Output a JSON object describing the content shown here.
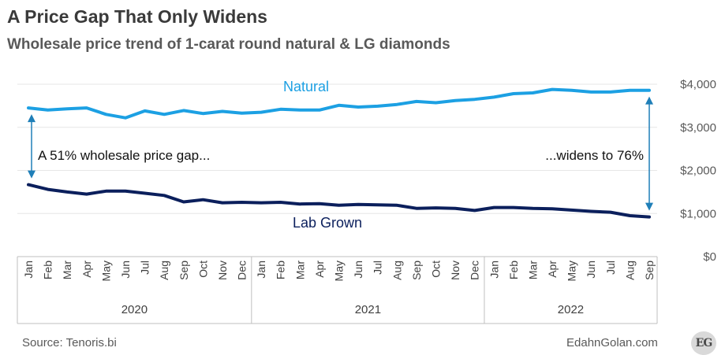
{
  "header": {
    "title": "A Price Gap That Only Widens",
    "subtitle": "Wholesale price trend of 1-carat round natural & LG diamonds"
  },
  "footer": {
    "source": "Source: Tenoris.bi",
    "site": "EdahnGolan.com",
    "logo": "EG"
  },
  "colors": {
    "natural": "#1ca0e3",
    "lab_grown": "#0b1f5c",
    "arrow": "#1f7fb8",
    "grid": "#e6e6e6",
    "axis": "#bfbfbf"
  },
  "chart_data": {
    "type": "line",
    "ylim": [
      0,
      4000
    ],
    "y_ticks": [
      0,
      1000,
      2000,
      3000,
      4000
    ],
    "y_tick_labels": [
      "$0",
      "$1,000",
      "$2,000",
      "$3,000",
      "$4,000"
    ],
    "grid": true,
    "categories": [
      "Jan",
      "Feb",
      "Mar",
      "Apr",
      "May",
      "Jun",
      "Jul",
      "Aug",
      "Sep",
      "Oct",
      "Nov",
      "Dec",
      "Jan",
      "Feb",
      "Mar",
      "Apr",
      "May",
      "Jun",
      "Jul",
      "Aug",
      "Sep",
      "Oct",
      "Nov",
      "Dec",
      "Jan",
      "Feb",
      "Mar",
      "Apr",
      "May",
      "Jun",
      "Jul",
      "Aug",
      "Sep"
    ],
    "year_groups": [
      {
        "label": "2020",
        "count": 12
      },
      {
        "label": "2021",
        "count": 12
      },
      {
        "label": "2022",
        "count": 9
      }
    ],
    "series": [
      {
        "name": "Natural",
        "color": "#1ca0e3",
        "values": [
          3450,
          3400,
          3430,
          3450,
          3300,
          3220,
          3380,
          3300,
          3390,
          3320,
          3370,
          3330,
          3350,
          3420,
          3400,
          3400,
          3510,
          3470,
          3490,
          3530,
          3600,
          3570,
          3620,
          3650,
          3700,
          3780,
          3800,
          3880,
          3860,
          3820,
          3820,
          3860,
          3860
        ]
      },
      {
        "name": "Lab Grown",
        "color": "#0b1f5c",
        "values": [
          1670,
          1560,
          1500,
          1450,
          1520,
          1520,
          1470,
          1420,
          1270,
          1320,
          1250,
          1260,
          1250,
          1260,
          1220,
          1230,
          1190,
          1210,
          1200,
          1190,
          1120,
          1130,
          1120,
          1070,
          1140,
          1140,
          1120,
          1110,
          1080,
          1050,
          1030,
          950,
          920
        ]
      }
    ],
    "annotations": [
      {
        "text": "A 51% wholesale price gap...",
        "index": 0
      },
      {
        "text": "...widens to 76%",
        "index": 32
      }
    ]
  }
}
